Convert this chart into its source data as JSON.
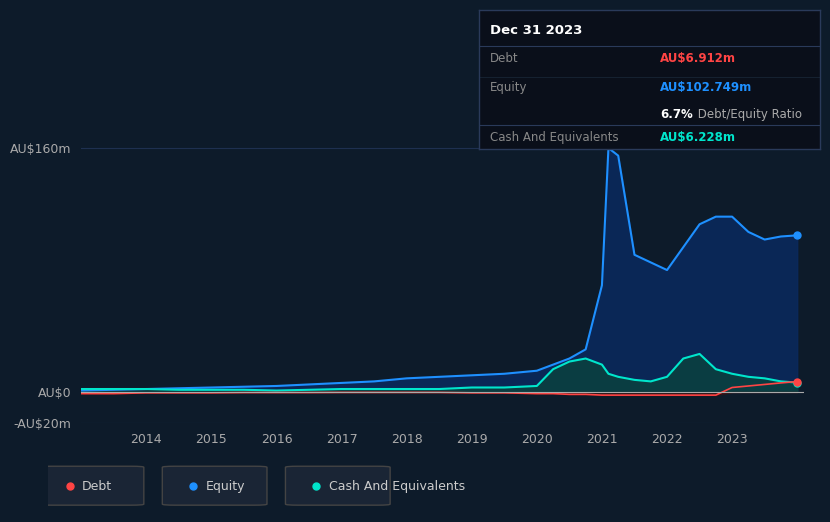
{
  "bg_color": "#0d1b2a",
  "plot_bg_color": "#0d1b2a",
  "grid_color": "#1e3050",
  "text_color": "#aaaaaa",
  "ylim": [
    -20,
    180
  ],
  "yticks": [
    -20,
    0,
    160
  ],
  "ytick_labels": [
    "-AU$20m",
    "AU$0",
    "AU$160m"
  ],
  "years": [
    2013.0,
    2013.5,
    2014.0,
    2014.5,
    2015.0,
    2015.5,
    2016.0,
    2016.5,
    2017.0,
    2017.5,
    2018.0,
    2018.5,
    2019.0,
    2019.5,
    2020.0,
    2020.25,
    2020.5,
    2020.75,
    2021.0,
    2021.1,
    2021.25,
    2021.5,
    2021.75,
    2022.0,
    2022.25,
    2022.5,
    2022.75,
    2023.0,
    2023.25,
    2023.5,
    2023.75,
    2024.0
  ],
  "equity": [
    1,
    1.5,
    2,
    2.5,
    3,
    3.5,
    4,
    5,
    6,
    7,
    9,
    10,
    11,
    12,
    14,
    18,
    22,
    28,
    70,
    160,
    155,
    90,
    85,
    80,
    95,
    110,
    115,
    115,
    105,
    100,
    102,
    102.749
  ],
  "cash": [
    2,
    2,
    2,
    1.5,
    1.5,
    1.5,
    1,
    1.5,
    2,
    2,
    2,
    2,
    3,
    3,
    4,
    15,
    20,
    22,
    18,
    12,
    10,
    8,
    7,
    10,
    22,
    25,
    15,
    12,
    10,
    9,
    7,
    6.228
  ],
  "debt": [
    -1,
    -1,
    -0.5,
    -0.5,
    -0.5,
    -0.3,
    -0.3,
    -0.3,
    -0.2,
    -0.2,
    -0.2,
    -0.2,
    -0.5,
    -0.5,
    -1,
    -1,
    -1.5,
    -1.5,
    -2,
    -2,
    -2,
    -2,
    -2,
    -2,
    -2,
    -2,
    -2,
    3,
    4,
    5,
    6,
    6.912
  ],
  "equity_color": "#1e90ff",
  "equity_fill": "#0a2a5e",
  "cash_color": "#00e5cc",
  "cash_fill": "#0a4040",
  "debt_color": "#ff4444",
  "debt_fill": "#3a1010",
  "tooltip_bg": "#0a0f1a",
  "tooltip_border": "#2a3a5a",
  "tooltip_title": "Dec 31 2023",
  "tooltip_debt_label": "Debt",
  "tooltip_debt_value": "AU$6.912m",
  "tooltip_equity_label": "Equity",
  "tooltip_equity_value": "AU$102.749m",
  "tooltip_ratio_bold": "6.7%",
  "tooltip_ratio_rest": " Debt/Equity Ratio",
  "tooltip_cash_label": "Cash And Equivalents",
  "tooltip_cash_value": "AU$6.228m",
  "legend_debt": "Debt",
  "legend_equity": "Equity",
  "legend_cash": "Cash And Equivalents",
  "xtick_years": [
    "2014",
    "2015",
    "2016",
    "2017",
    "2018",
    "2019",
    "2020",
    "2021",
    "2022",
    "2023"
  ],
  "xtick_positions": [
    2014,
    2015,
    2016,
    2017,
    2018,
    2019,
    2020,
    2021,
    2022,
    2023
  ]
}
